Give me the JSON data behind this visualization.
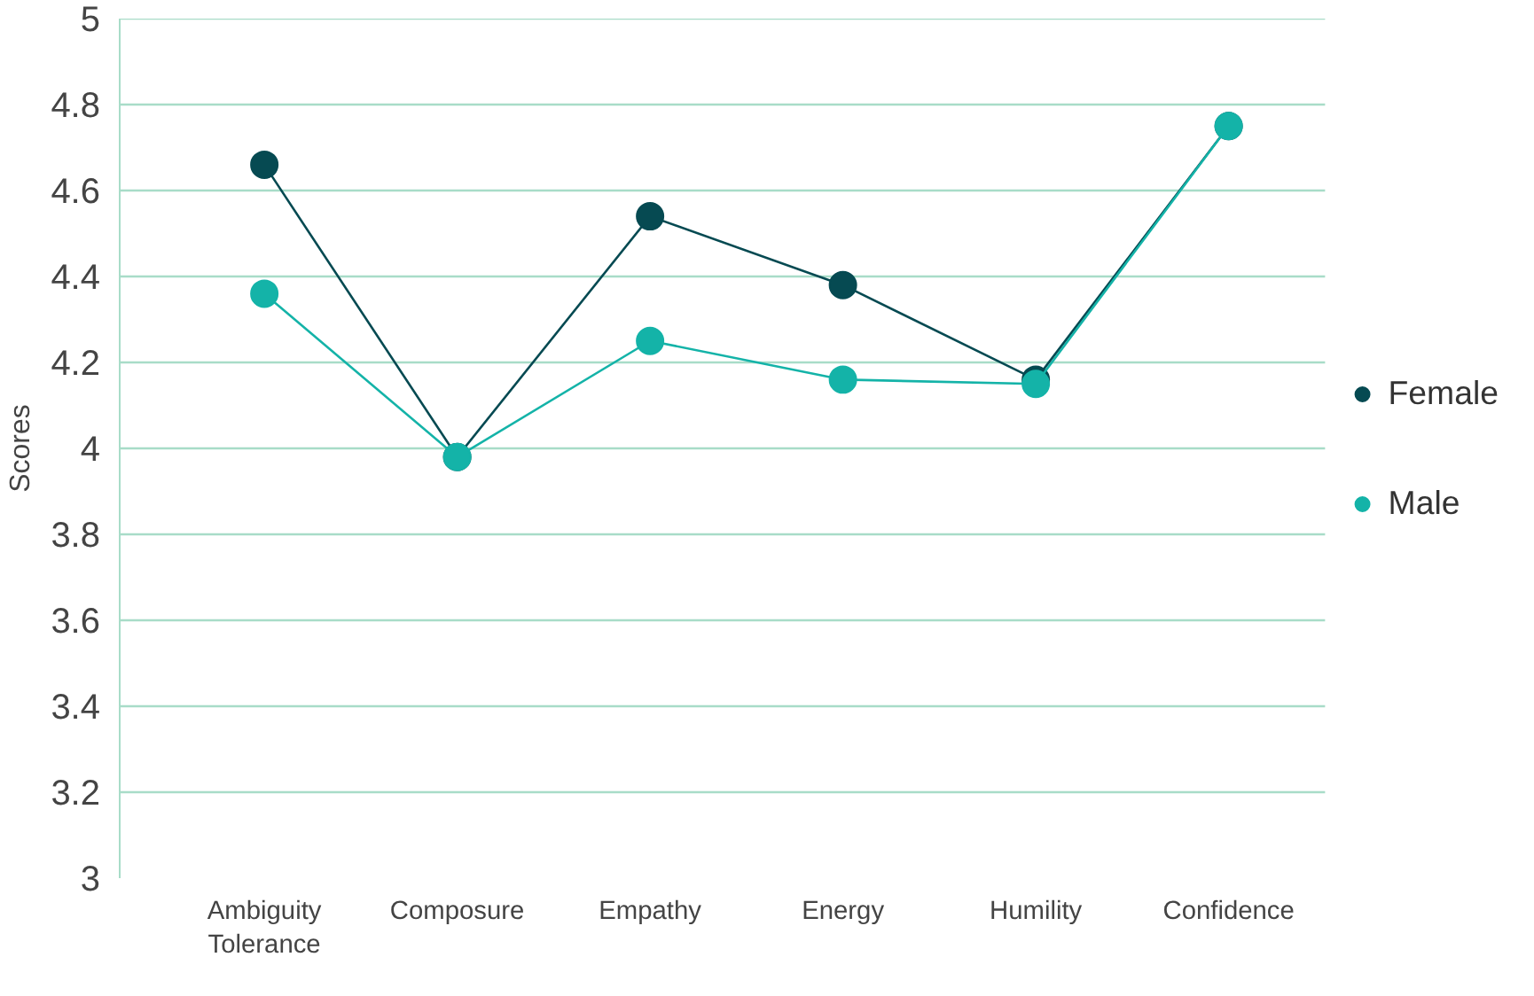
{
  "chart_data": {
    "type": "line",
    "ylabel": "Scores",
    "categories": [
      "Ambiguity Tolerance",
      "Composure",
      "Empathy",
      "Energy",
      "Humility",
      "Confidence"
    ],
    "series": [
      {
        "name": "Female",
        "color": "#064a52",
        "values": [
          4.66,
          3.98,
          4.54,
          4.38,
          4.16,
          4.75
        ]
      },
      {
        "name": "Male",
        "color": "#14b3a8",
        "values": [
          4.36,
          3.98,
          4.25,
          4.16,
          4.15,
          4.75
        ]
      }
    ],
    "ylim": [
      3,
      5
    ],
    "yticks": [
      3,
      3.2,
      3.4,
      3.6,
      3.8,
      4,
      4.2,
      4.4,
      4.6,
      4.8,
      5
    ],
    "grid": "y",
    "legend": "right",
    "marker": "circle",
    "line_style": "solid"
  }
}
